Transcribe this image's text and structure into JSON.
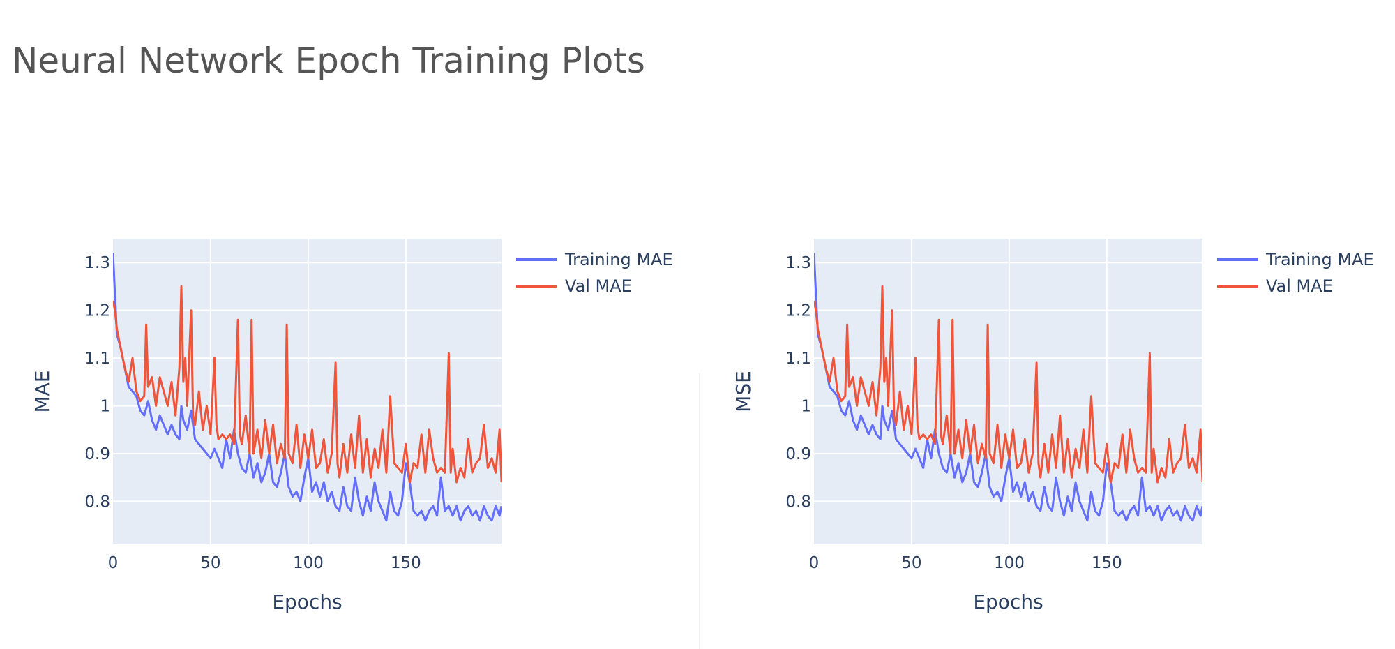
{
  "title": "Neural Network Epoch Training Plots",
  "colors": {
    "training": "#636efa",
    "validation": "#ef553b",
    "plot_bg": "#e5ecf6",
    "grid": "#ffffff"
  },
  "chart_data": [
    {
      "type": "line",
      "xlabel": "Epochs",
      "ylabel": "MAE",
      "xlim": [
        0,
        199
      ],
      "ylim": [
        0.71,
        1.35
      ],
      "xticks": [
        0,
        50,
        100,
        150
      ],
      "yticks": [
        0.8,
        0.9,
        1,
        1.1,
        1.2,
        1.3
      ],
      "ytick_labels": [
        "0.8",
        "0.9",
        "1",
        "1.1",
        "1.2",
        "1.3"
      ],
      "legend_position": "top-right-outside",
      "series": [
        {
          "name": "Training MAE",
          "color": "#636efa",
          "x": [
            0,
            2,
            4,
            6,
            8,
            10,
            12,
            14,
            16,
            18,
            20,
            22,
            24,
            26,
            28,
            30,
            32,
            34,
            35,
            36,
            38,
            40,
            42,
            44,
            46,
            48,
            50,
            52,
            54,
            56,
            58,
            60,
            62,
            64,
            66,
            68,
            70,
            72,
            74,
            76,
            78,
            80,
            82,
            84,
            86,
            88,
            90,
            92,
            94,
            96,
            98,
            100,
            102,
            104,
            106,
            108,
            110,
            112,
            114,
            116,
            118,
            120,
            122,
            124,
            126,
            128,
            130,
            132,
            134,
            136,
            138,
            140,
            142,
            144,
            146,
            148,
            150,
            152,
            154,
            156,
            158,
            160,
            162,
            164,
            166,
            168,
            170,
            172,
            174,
            176,
            178,
            180,
            182,
            184,
            186,
            188,
            190,
            192,
            194,
            196,
            198,
            199
          ],
          "y": [
            1.32,
            1.15,
            1.12,
            1.08,
            1.04,
            1.03,
            1.02,
            0.99,
            0.98,
            1.01,
            0.97,
            0.95,
            0.98,
            0.96,
            0.94,
            0.96,
            0.94,
            0.93,
            1.0,
            0.97,
            0.95,
            0.99,
            0.93,
            0.92,
            0.91,
            0.9,
            0.89,
            0.91,
            0.89,
            0.87,
            0.93,
            0.89,
            0.95,
            0.9,
            0.87,
            0.86,
            0.9,
            0.85,
            0.88,
            0.84,
            0.86,
            0.9,
            0.84,
            0.83,
            0.86,
            0.9,
            0.83,
            0.81,
            0.82,
            0.8,
            0.85,
            0.89,
            0.82,
            0.84,
            0.81,
            0.84,
            0.8,
            0.82,
            0.79,
            0.78,
            0.83,
            0.79,
            0.78,
            0.85,
            0.8,
            0.77,
            0.81,
            0.78,
            0.84,
            0.8,
            0.78,
            0.76,
            0.82,
            0.78,
            0.77,
            0.8,
            0.88,
            0.84,
            0.78,
            0.77,
            0.78,
            0.76,
            0.78,
            0.79,
            0.77,
            0.85,
            0.78,
            0.79,
            0.77,
            0.79,
            0.76,
            0.78,
            0.79,
            0.77,
            0.78,
            0.76,
            0.79,
            0.77,
            0.76,
            0.79,
            0.77,
            0.79
          ]
        },
        {
          "name": "Val MAE",
          "color": "#ef553b",
          "x": [
            0,
            1,
            2,
            4,
            6,
            8,
            10,
            12,
            14,
            16,
            17,
            18,
            20,
            22,
            24,
            26,
            28,
            30,
            32,
            34,
            35,
            36,
            37,
            38,
            40,
            41,
            42,
            44,
            46,
            48,
            50,
            52,
            53,
            54,
            56,
            58,
            60,
            62,
            64,
            65,
            66,
            68,
            70,
            71,
            72,
            74,
            76,
            78,
            80,
            82,
            84,
            86,
            88,
            89,
            90,
            92,
            94,
            96,
            98,
            100,
            102,
            104,
            106,
            108,
            110,
            112,
            114,
            115,
            116,
            118,
            120,
            122,
            124,
            126,
            128,
            130,
            132,
            134,
            136,
            138,
            140,
            142,
            144,
            146,
            148,
            150,
            152,
            154,
            156,
            158,
            160,
            162,
            164,
            166,
            168,
            170,
            172,
            173,
            174,
            176,
            178,
            180,
            182,
            184,
            186,
            188,
            190,
            192,
            194,
            196,
            198,
            199
          ],
          "y": [
            1.22,
            1.2,
            1.16,
            1.12,
            1.08,
            1.05,
            1.1,
            1.03,
            1.01,
            1.02,
            1.17,
            1.04,
            1.06,
            1.0,
            1.06,
            1.03,
            1.0,
            1.05,
            0.98,
            1.08,
            1.25,
            1.05,
            1.1,
            1.0,
            1.2,
            0.98,
            0.96,
            1.03,
            0.95,
            1.0,
            0.94,
            1.1,
            0.96,
            0.93,
            0.94,
            0.93,
            0.94,
            0.92,
            1.18,
            0.94,
            0.92,
            0.98,
            0.9,
            1.18,
            0.9,
            0.95,
            0.89,
            0.97,
            0.9,
            0.96,
            0.88,
            0.92,
            0.89,
            1.17,
            0.9,
            0.88,
            0.96,
            0.87,
            0.94,
            0.89,
            0.95,
            0.87,
            0.88,
            0.93,
            0.86,
            0.9,
            1.09,
            0.88,
            0.85,
            0.92,
            0.86,
            0.94,
            0.87,
            0.98,
            0.86,
            0.93,
            0.85,
            0.91,
            0.87,
            0.95,
            0.86,
            1.02,
            0.88,
            0.87,
            0.86,
            0.92,
            0.84,
            0.88,
            0.87,
            0.94,
            0.86,
            0.95,
            0.89,
            0.86,
            0.87,
            0.86,
            1.11,
            0.86,
            0.91,
            0.84,
            0.87,
            0.85,
            0.93,
            0.86,
            0.88,
            0.89,
            0.96,
            0.87,
            0.89,
            0.86,
            0.95,
            0.84
          ]
        }
      ]
    },
    {
      "type": "line",
      "xlabel": "Epochs",
      "ylabel": "MSE",
      "xlim": [
        0,
        199
      ],
      "ylim": [
        0.71,
        1.35
      ],
      "xticks": [
        0,
        50,
        100,
        150
      ],
      "yticks": [
        0.8,
        0.9,
        1,
        1.1,
        1.2,
        1.3
      ],
      "ytick_labels": [
        "0.8",
        "0.9",
        "1",
        "1.1",
        "1.2",
        "1.3"
      ],
      "legend_position": "top-right-outside",
      "series": [
        {
          "name": "Training MAE",
          "color": "#636efa",
          "x": [
            0,
            2,
            4,
            6,
            8,
            10,
            12,
            14,
            16,
            18,
            20,
            22,
            24,
            26,
            28,
            30,
            32,
            34,
            35,
            36,
            38,
            40,
            42,
            44,
            46,
            48,
            50,
            52,
            54,
            56,
            58,
            60,
            62,
            64,
            66,
            68,
            70,
            72,
            74,
            76,
            78,
            80,
            82,
            84,
            86,
            88,
            90,
            92,
            94,
            96,
            98,
            100,
            102,
            104,
            106,
            108,
            110,
            112,
            114,
            116,
            118,
            120,
            122,
            124,
            126,
            128,
            130,
            132,
            134,
            136,
            138,
            140,
            142,
            144,
            146,
            148,
            150,
            152,
            154,
            156,
            158,
            160,
            162,
            164,
            166,
            168,
            170,
            172,
            174,
            176,
            178,
            180,
            182,
            184,
            186,
            188,
            190,
            192,
            194,
            196,
            198,
            199
          ],
          "y": [
            1.32,
            1.15,
            1.12,
            1.08,
            1.04,
            1.03,
            1.02,
            0.99,
            0.98,
            1.01,
            0.97,
            0.95,
            0.98,
            0.96,
            0.94,
            0.96,
            0.94,
            0.93,
            1.0,
            0.97,
            0.95,
            0.99,
            0.93,
            0.92,
            0.91,
            0.9,
            0.89,
            0.91,
            0.89,
            0.87,
            0.93,
            0.89,
            0.95,
            0.9,
            0.87,
            0.86,
            0.9,
            0.85,
            0.88,
            0.84,
            0.86,
            0.9,
            0.84,
            0.83,
            0.86,
            0.9,
            0.83,
            0.81,
            0.82,
            0.8,
            0.85,
            0.89,
            0.82,
            0.84,
            0.81,
            0.84,
            0.8,
            0.82,
            0.79,
            0.78,
            0.83,
            0.79,
            0.78,
            0.85,
            0.8,
            0.77,
            0.81,
            0.78,
            0.84,
            0.8,
            0.78,
            0.76,
            0.82,
            0.78,
            0.77,
            0.8,
            0.88,
            0.84,
            0.78,
            0.77,
            0.78,
            0.76,
            0.78,
            0.79,
            0.77,
            0.85,
            0.78,
            0.79,
            0.77,
            0.79,
            0.76,
            0.78,
            0.79,
            0.77,
            0.78,
            0.76,
            0.79,
            0.77,
            0.76,
            0.79,
            0.77,
            0.79
          ]
        },
        {
          "name": "Val MAE",
          "color": "#ef553b",
          "x": [
            0,
            1,
            2,
            4,
            6,
            8,
            10,
            12,
            14,
            16,
            17,
            18,
            20,
            22,
            24,
            26,
            28,
            30,
            32,
            34,
            35,
            36,
            37,
            38,
            40,
            41,
            42,
            44,
            46,
            48,
            50,
            52,
            53,
            54,
            56,
            58,
            60,
            62,
            64,
            65,
            66,
            68,
            70,
            71,
            72,
            74,
            76,
            78,
            80,
            82,
            84,
            86,
            88,
            89,
            90,
            92,
            94,
            96,
            98,
            100,
            102,
            104,
            106,
            108,
            110,
            112,
            114,
            115,
            116,
            118,
            120,
            122,
            124,
            126,
            128,
            130,
            132,
            134,
            136,
            138,
            140,
            142,
            144,
            146,
            148,
            150,
            152,
            154,
            156,
            158,
            160,
            162,
            164,
            166,
            168,
            170,
            172,
            173,
            174,
            176,
            178,
            180,
            182,
            184,
            186,
            188,
            190,
            192,
            194,
            196,
            198,
            199
          ],
          "y": [
            1.22,
            1.2,
            1.16,
            1.12,
            1.08,
            1.05,
            1.1,
            1.03,
            1.01,
            1.02,
            1.17,
            1.04,
            1.06,
            1.0,
            1.06,
            1.03,
            1.0,
            1.05,
            0.98,
            1.08,
            1.25,
            1.05,
            1.1,
            1.0,
            1.2,
            0.98,
            0.96,
            1.03,
            0.95,
            1.0,
            0.94,
            1.1,
            0.96,
            0.93,
            0.94,
            0.93,
            0.94,
            0.92,
            1.18,
            0.94,
            0.92,
            0.98,
            0.9,
            1.18,
            0.9,
            0.95,
            0.89,
            0.97,
            0.9,
            0.96,
            0.88,
            0.92,
            0.89,
            1.17,
            0.9,
            0.88,
            0.96,
            0.87,
            0.94,
            0.89,
            0.95,
            0.87,
            0.88,
            0.93,
            0.86,
            0.9,
            1.09,
            0.88,
            0.85,
            0.92,
            0.86,
            0.94,
            0.87,
            0.98,
            0.86,
            0.93,
            0.85,
            0.91,
            0.87,
            0.95,
            0.86,
            1.02,
            0.88,
            0.87,
            0.86,
            0.92,
            0.84,
            0.88,
            0.87,
            0.94,
            0.86,
            0.95,
            0.89,
            0.86,
            0.87,
            0.86,
            1.11,
            0.86,
            0.91,
            0.84,
            0.87,
            0.85,
            0.93,
            0.86,
            0.88,
            0.89,
            0.96,
            0.87,
            0.89,
            0.86,
            0.95,
            0.84
          ]
        }
      ]
    }
  ]
}
